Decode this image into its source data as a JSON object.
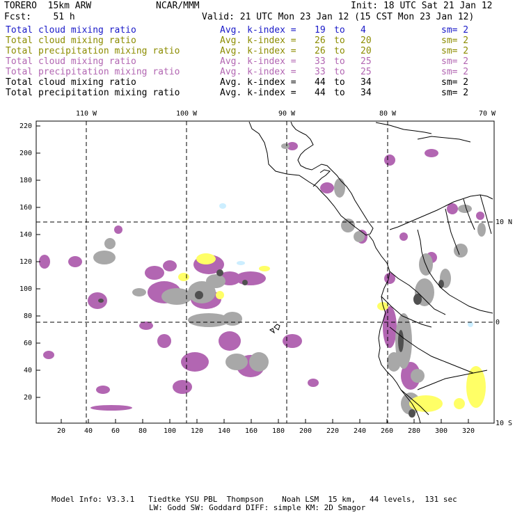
{
  "header": {
    "model": "TORERO  15km ARW",
    "org": "NCAR/MMM",
    "init": "Init: 18 UTC Sat 21 Jan 12",
    "fcst": "Fcst:    51 h",
    "valid": "Valid: 21 UTC Mon 23 Jan 12 (15 CST Mon 23 Jan 12)"
  },
  "legend": [
    {
      "field": "Total cloud mixing ratio",
      "stat": "Avg. k-index =",
      "a": "19",
      "to": "to",
      "b": "4",
      "sm": "sm= 2",
      "color": "#1a1ac8"
    },
    {
      "field": "Total cloud mixing ratio",
      "stat": "Avg. k-index =",
      "a": "26",
      "to": "to",
      "b": "20",
      "sm": "sm= 2",
      "color": "#8c8c00"
    },
    {
      "field": "Total precipitation mixing ratio",
      "stat": "Avg. k-index =",
      "a": "26",
      "to": "to",
      "b": "20",
      "sm": "sm= 2",
      "color": "#8c8c00"
    },
    {
      "field": "Total cloud mixing ratio",
      "stat": "Avg. k-index =",
      "a": "33",
      "to": "to",
      "b": "25",
      "sm": "sm= 2",
      "color": "#b266b2"
    },
    {
      "field": "Total precipitation mixing ratio",
      "stat": "Avg. k-index =",
      "a": "33",
      "to": "to",
      "b": "25",
      "sm": "sm= 2",
      "color": "#b266b2"
    },
    {
      "field": "Total cloud mixing ratio",
      "stat": "Avg. k-index =",
      "a": "44",
      "to": "to",
      "b": "34",
      "sm": "sm= 2",
      "color": "#000000"
    },
    {
      "field": "Total precipitation mixing ratio",
      "stat": "Avg. k-index =",
      "a": "44",
      "to": "to",
      "b": "34",
      "sm": "sm= 2",
      "color": "#000000"
    }
  ],
  "map": {
    "lon_labels": [
      "110 W",
      "100 W",
      "90 W",
      "80 W",
      "70 W"
    ],
    "lat_labels": [
      "10 N",
      "0",
      "10 S"
    ],
    "y_ticks": [
      "20",
      "40",
      "60",
      "80",
      "100",
      "120",
      "140",
      "160",
      "180",
      "200",
      "220"
    ],
    "x_ticks": [
      "20",
      "40",
      "60",
      "80",
      "100",
      "120",
      "140",
      "160",
      "180",
      "200",
      "220",
      "240",
      "260",
      "280",
      "300",
      "320"
    ],
    "colors": {
      "frame": "#000000",
      "grid": "#000000",
      "coast": "#000000",
      "grey": "#a8a8a8",
      "dark": "#505050",
      "purple": "#b266b2",
      "yellow": "#ffff66",
      "lightblue": "#cceeff"
    }
  },
  "footer": {
    "line1": "Model Info: V3.3.1   Tiedtke YSU PBL  Thompson    Noah LSM  15 km,   44 levels,  131 sec",
    "line2": "LW: Godd SW: Goddard DIFF: simple KM: 2D Smagor"
  }
}
